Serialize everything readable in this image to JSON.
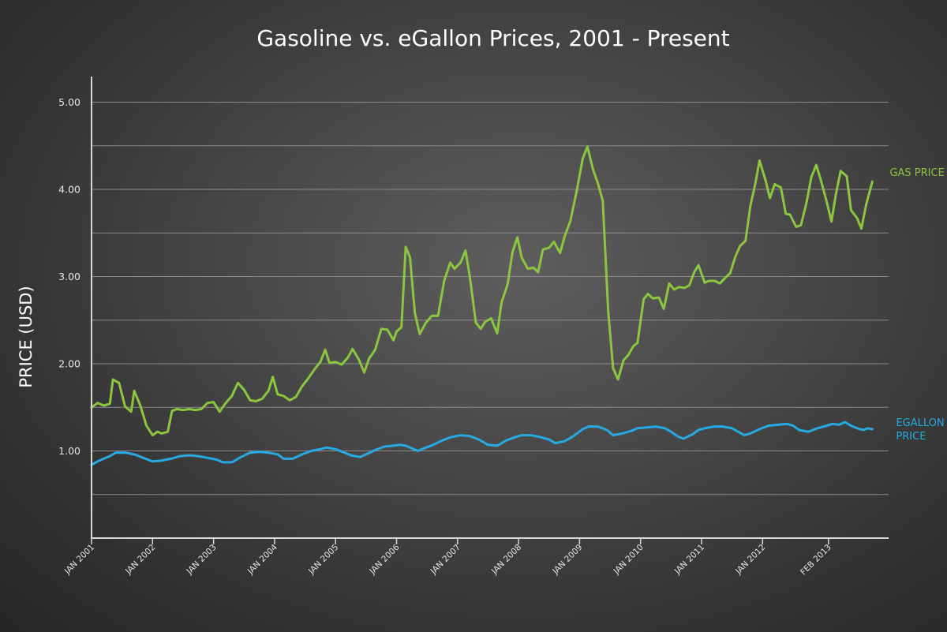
{
  "chart_data": {
    "type": "line",
    "title": "Gasoline vs. eGallon Prices, 2001 - Present",
    "xlabel": "",
    "ylabel": "PRICE (USD)",
    "ylim": [
      0,
      5.5
    ],
    "xlim": [
      2001.0,
      2014.3
    ],
    "grid": true,
    "yticks": [
      {
        "value": 1,
        "label": "1.00"
      },
      {
        "value": 2,
        "label": "2.00"
      },
      {
        "value": 3,
        "label": "3.00"
      },
      {
        "value": 4,
        "label": "4.00"
      },
      {
        "value": 5,
        "label": "5.00"
      }
    ],
    "ygrid": [
      0.5,
      1,
      1.5,
      2,
      2.5,
      3,
      3.5,
      4,
      4.5,
      5
    ],
    "xticks": [
      {
        "value": 2001.0,
        "label": "JAN 2001"
      },
      {
        "value": 2002.0,
        "label": "JAN 2002"
      },
      {
        "value": 2003.0,
        "label": "JAN 2003"
      },
      {
        "value": 2004.0,
        "label": "JAN 2004"
      },
      {
        "value": 2005.0,
        "label": "JAN 2005"
      },
      {
        "value": 2006.0,
        "label": "JAN 2006"
      },
      {
        "value": 2007.0,
        "label": "JAN 2007"
      },
      {
        "value": 2008.0,
        "label": "JAN 2008"
      },
      {
        "value": 2009.0,
        "label": "JAN 2009"
      },
      {
        "value": 2010.0,
        "label": "JAN 2010"
      },
      {
        "value": 2011.0,
        "label": "JAN 2011"
      },
      {
        "value": 2012.0,
        "label": "JAN 2012"
      },
      {
        "value": 2013.08,
        "label": "FEB 2013"
      }
    ],
    "series": [
      {
        "name": "GAS PRICE",
        "label_lines": [
          "GAS PRICE"
        ],
        "color": "#8cc63f",
        "points": [
          [
            2001.0,
            1.5
          ],
          [
            2001.1,
            1.55
          ],
          [
            2001.2,
            1.52
          ],
          [
            2001.3,
            1.54
          ],
          [
            2001.35,
            1.82
          ],
          [
            2001.45,
            1.78
          ],
          [
            2001.55,
            1.51
          ],
          [
            2001.65,
            1.45
          ],
          [
            2001.7,
            1.69
          ],
          [
            2001.8,
            1.52
          ],
          [
            2001.9,
            1.29
          ],
          [
            2002.0,
            1.18
          ],
          [
            2002.08,
            1.22
          ],
          [
            2002.15,
            1.2
          ],
          [
            2002.25,
            1.22
          ],
          [
            2002.32,
            1.46
          ],
          [
            2002.4,
            1.48
          ],
          [
            2002.5,
            1.47
          ],
          [
            2002.6,
            1.48
          ],
          [
            2002.7,
            1.47
          ],
          [
            2002.8,
            1.48
          ],
          [
            2002.9,
            1.55
          ],
          [
            2003.0,
            1.56
          ],
          [
            2003.1,
            1.45
          ],
          [
            2003.2,
            1.55
          ],
          [
            2003.3,
            1.63
          ],
          [
            2003.4,
            1.78
          ],
          [
            2003.5,
            1.7
          ],
          [
            2003.6,
            1.58
          ],
          [
            2003.7,
            1.57
          ],
          [
            2003.8,
            1.6
          ],
          [
            2003.9,
            1.69
          ],
          [
            2003.97,
            1.85
          ],
          [
            2004.05,
            1.65
          ],
          [
            2004.15,
            1.63
          ],
          [
            2004.25,
            1.58
          ],
          [
            2004.35,
            1.62
          ],
          [
            2004.45,
            1.74
          ],
          [
            2004.55,
            1.83
          ],
          [
            2004.65,
            1.93
          ],
          [
            2004.75,
            2.02
          ],
          [
            2004.83,
            2.16
          ],
          [
            2004.9,
            2.01
          ],
          [
            2005.0,
            2.02
          ],
          [
            2005.1,
            1.99
          ],
          [
            2005.2,
            2.07
          ],
          [
            2005.28,
            2.17
          ],
          [
            2005.38,
            2.05
          ],
          [
            2005.47,
            1.9
          ],
          [
            2005.55,
            2.06
          ],
          [
            2005.65,
            2.16
          ],
          [
            2005.75,
            2.4
          ],
          [
            2005.85,
            2.39
          ],
          [
            2005.95,
            2.27
          ],
          [
            2006.0,
            2.37
          ],
          [
            2006.08,
            2.42
          ],
          [
            2006.15,
            3.34
          ],
          [
            2006.22,
            3.22
          ],
          [
            2006.3,
            2.58
          ],
          [
            2006.38,
            2.34
          ],
          [
            2006.48,
            2.47
          ],
          [
            2006.58,
            2.55
          ],
          [
            2006.68,
            2.55
          ],
          [
            2006.78,
            2.95
          ],
          [
            2006.88,
            3.16
          ],
          [
            2006.95,
            3.09
          ],
          [
            2007.05,
            3.16
          ],
          [
            2007.13,
            3.3
          ],
          [
            2007.2,
            3.0
          ],
          [
            2007.3,
            2.47
          ],
          [
            2007.38,
            2.4
          ],
          [
            2007.45,
            2.48
          ],
          [
            2007.55,
            2.52
          ],
          [
            2007.65,
            2.35
          ],
          [
            2007.72,
            2.7
          ],
          [
            2007.82,
            2.91
          ],
          [
            2007.9,
            3.28
          ],
          [
            2007.98,
            3.45
          ],
          [
            2008.05,
            3.22
          ],
          [
            2008.15,
            3.09
          ],
          [
            2008.25,
            3.1
          ],
          [
            2008.32,
            3.05
          ],
          [
            2008.4,
            3.31
          ],
          [
            2008.5,
            3.33
          ],
          [
            2008.58,
            3.4
          ],
          [
            2008.68,
            3.27
          ],
          [
            2008.75,
            3.45
          ],
          [
            2008.85,
            3.64
          ],
          [
            2008.95,
            3.97
          ],
          [
            2009.05,
            4.35
          ],
          [
            2009.13,
            4.49
          ],
          [
            2009.22,
            4.23
          ],
          [
            2009.3,
            4.07
          ],
          [
            2009.38,
            3.87
          ],
          [
            2009.47,
            2.6
          ],
          [
            2009.55,
            1.95
          ],
          [
            2009.63,
            1.82
          ],
          [
            2009.72,
            2.04
          ],
          [
            2009.8,
            2.1
          ],
          [
            2009.88,
            2.2
          ],
          [
            2009.95,
            2.24
          ],
          [
            2010.05,
            2.74
          ],
          [
            2010.12,
            2.8
          ],
          [
            2010.2,
            2.75
          ],
          [
            2010.3,
            2.76
          ],
          [
            2010.38,
            2.63
          ],
          [
            2010.47,
            2.92
          ],
          [
            2010.55,
            2.85
          ],
          [
            2010.63,
            2.88
          ],
          [
            2010.72,
            2.87
          ],
          [
            2010.8,
            2.9
          ],
          [
            2010.88,
            3.05
          ],
          [
            2010.95,
            3.13
          ],
          [
            2011.05,
            2.93
          ],
          [
            2011.12,
            2.95
          ],
          [
            2011.22,
            2.95
          ],
          [
            2011.3,
            2.92
          ],
          [
            2011.38,
            2.98
          ],
          [
            2011.47,
            3.04
          ],
          [
            2011.55,
            3.22
          ],
          [
            2011.63,
            3.35
          ],
          [
            2011.72,
            3.41
          ],
          [
            2011.8,
            3.81
          ],
          [
            2011.88,
            4.06
          ],
          [
            2011.95,
            4.33
          ],
          [
            2012.05,
            4.1
          ],
          [
            2012.12,
            3.9
          ],
          [
            2012.2,
            4.06
          ],
          [
            2012.3,
            4.02
          ],
          [
            2012.38,
            3.72
          ],
          [
            2012.45,
            3.71
          ],
          [
            2012.55,
            3.57
          ],
          [
            2012.63,
            3.59
          ],
          [
            2012.72,
            3.85
          ],
          [
            2012.8,
            4.14
          ],
          [
            2012.88,
            4.28
          ],
          [
            2012.95,
            4.12
          ],
          [
            2013.05,
            3.86
          ],
          [
            2013.13,
            3.63
          ],
          [
            2013.2,
            3.94
          ],
          [
            2013.28,
            4.21
          ],
          [
            2013.38,
            4.15
          ],
          [
            2013.45,
            3.76
          ],
          [
            2013.55,
            3.67
          ],
          [
            2013.62,
            3.55
          ],
          [
            2013.7,
            3.83
          ],
          [
            2013.8,
            4.09
          ]
        ]
      },
      {
        "name": "EGALLON PRICE",
        "label_lines": [
          "EGALLON",
          "PRICE"
        ],
        "color": "#27a9e1",
        "points": [
          [
            2001.0,
            0.84
          ],
          [
            2001.1,
            0.88
          ],
          [
            2001.2,
            0.91
          ],
          [
            2001.3,
            0.94
          ],
          [
            2001.4,
            0.98
          ],
          [
            2001.55,
            0.98
          ],
          [
            2001.7,
            0.96
          ],
          [
            2001.85,
            0.92
          ],
          [
            2002.0,
            0.88
          ],
          [
            2002.15,
            0.89
          ],
          [
            2002.3,
            0.91
          ],
          [
            2002.45,
            0.94
          ],
          [
            2002.6,
            0.95
          ],
          [
            2002.75,
            0.94
          ],
          [
            2002.9,
            0.92
          ],
          [
            2003.05,
            0.9
          ],
          [
            2003.15,
            0.87
          ],
          [
            2003.3,
            0.87
          ],
          [
            2003.45,
            0.93
          ],
          [
            2003.6,
            0.98
          ],
          [
            2003.75,
            0.99
          ],
          [
            2003.9,
            0.98
          ],
          [
            2004.05,
            0.96
          ],
          [
            2004.15,
            0.91
          ],
          [
            2004.3,
            0.91
          ],
          [
            2004.45,
            0.96
          ],
          [
            2004.6,
            1.0
          ],
          [
            2004.75,
            1.02
          ],
          [
            2004.85,
            1.04
          ],
          [
            2005.0,
            1.02
          ],
          [
            2005.15,
            0.98
          ],
          [
            2005.25,
            0.95
          ],
          [
            2005.4,
            0.93
          ],
          [
            2005.5,
            0.96
          ],
          [
            2005.65,
            1.01
          ],
          [
            2005.8,
            1.05
          ],
          [
            2005.95,
            1.06
          ],
          [
            2006.05,
            1.07
          ],
          [
            2006.15,
            1.06
          ],
          [
            2006.25,
            1.03
          ],
          [
            2006.35,
            1.0
          ],
          [
            2006.45,
            1.03
          ],
          [
            2006.6,
            1.07
          ],
          [
            2006.75,
            1.12
          ],
          [
            2006.9,
            1.16
          ],
          [
            2007.05,
            1.18
          ],
          [
            2007.2,
            1.17
          ],
          [
            2007.35,
            1.13
          ],
          [
            2007.5,
            1.07
          ],
          [
            2007.65,
            1.06
          ],
          [
            2007.8,
            1.12
          ],
          [
            2007.95,
            1.16
          ],
          [
            2008.05,
            1.18
          ],
          [
            2008.2,
            1.18
          ],
          [
            2008.35,
            1.16
          ],
          [
            2008.5,
            1.13
          ],
          [
            2008.6,
            1.09
          ],
          [
            2008.75,
            1.11
          ],
          [
            2008.9,
            1.17
          ],
          [
            2009.05,
            1.25
          ],
          [
            2009.15,
            1.28
          ],
          [
            2009.3,
            1.28
          ],
          [
            2009.45,
            1.24
          ],
          [
            2009.55,
            1.18
          ],
          [
            2009.7,
            1.2
          ],
          [
            2009.85,
            1.23
          ],
          [
            2009.95,
            1.26
          ],
          [
            2010.1,
            1.27
          ],
          [
            2010.25,
            1.28
          ],
          [
            2010.4,
            1.26
          ],
          [
            2010.5,
            1.22
          ],
          [
            2010.6,
            1.17
          ],
          [
            2010.7,
            1.14
          ],
          [
            2010.85,
            1.19
          ],
          [
            2010.95,
            1.24
          ],
          [
            2011.05,
            1.26
          ],
          [
            2011.2,
            1.28
          ],
          [
            2011.35,
            1.28
          ],
          [
            2011.5,
            1.26
          ],
          [
            2011.6,
            1.22
          ],
          [
            2011.7,
            1.18
          ],
          [
            2011.8,
            1.2
          ],
          [
            2011.95,
            1.25
          ],
          [
            2012.1,
            1.29
          ],
          [
            2012.25,
            1.3
          ],
          [
            2012.4,
            1.31
          ],
          [
            2012.5,
            1.29
          ],
          [
            2012.6,
            1.24
          ],
          [
            2012.75,
            1.22
          ],
          [
            2012.9,
            1.26
          ],
          [
            2013.05,
            1.29
          ],
          [
            2013.15,
            1.31
          ],
          [
            2013.25,
            1.3
          ],
          [
            2013.35,
            1.33
          ],
          [
            2013.45,
            1.29
          ],
          [
            2013.55,
            1.26
          ],
          [
            2013.65,
            1.24
          ],
          [
            2013.72,
            1.26
          ],
          [
            2013.8,
            1.25
          ]
        ]
      }
    ]
  }
}
